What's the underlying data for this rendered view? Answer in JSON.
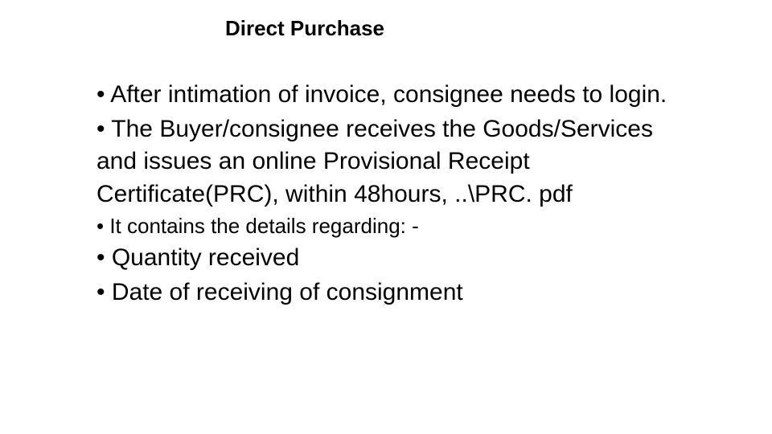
{
  "slide": {
    "background_color": "#ffffff",
    "text_color": "#000000",
    "font_family": "Comic Sans MS",
    "title": "Direct Purchase",
    "title_fontsize": 26,
    "body_fontsize": 30,
    "small_fontsize": 26,
    "bullets": [
      "After intimation of invoice, consignee needs to login.",
      "The Buyer/consignee receives the Goods/Services and issues an online Provisional Receipt Certificate(PRC), within 48hours, ..\\PRC. pdf",
      "It contains the details regarding: -",
      "Quantity received",
      "Date of receiving of consignment"
    ]
  }
}
